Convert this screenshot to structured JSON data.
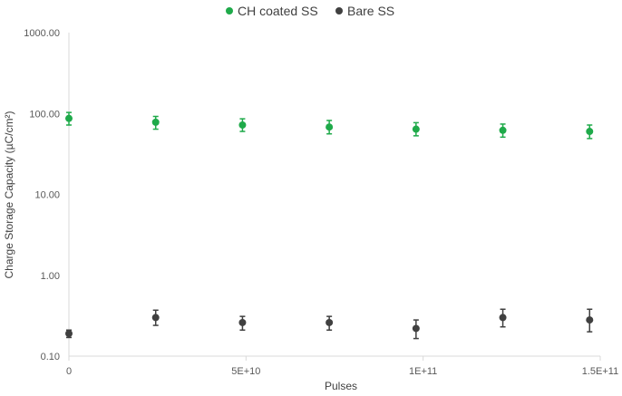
{
  "chart_data": {
    "type": "scatter",
    "xlabel": "Pulses",
    "ylabel": "Charge Storage Capacity (µC/cm²)",
    "xlim": [
      0,
      150000000000
    ],
    "ylim": [
      0.1,
      1000
    ],
    "yscale": "log",
    "grid": false,
    "legend_position": "top",
    "xticks": [
      {
        "value": 0,
        "label": "0"
      },
      {
        "value": 50000000000,
        "label": "5E+10"
      },
      {
        "value": 100000000000,
        "label": "1E+11"
      },
      {
        "value": 150000000000,
        "label": "1.5E+11"
      }
    ],
    "yticks": [
      {
        "value": 0.1,
        "label": "0.10"
      },
      {
        "value": 1,
        "label": "1.00"
      },
      {
        "value": 10,
        "label": "10.00"
      },
      {
        "value": 100,
        "label": "100.00"
      },
      {
        "value": 1000,
        "label": "1000.00"
      }
    ],
    "series": [
      {
        "name": "CH coated SS",
        "color": "#1faa4a",
        "x": [
          0,
          24500000000,
          49000000000,
          73500000000,
          98000000000,
          122500000000,
          147000000000
        ],
        "y": [
          87,
          78,
          72,
          68,
          64,
          62,
          60
        ],
        "err_low": [
          72,
          64,
          60,
          56,
          53,
          51,
          49
        ],
        "err_high": [
          103,
          92,
          86,
          82,
          77,
          74,
          72
        ]
      },
      {
        "name": "Bare SS",
        "color": "#404040",
        "x": [
          0,
          24500000000,
          49000000000,
          73500000000,
          98000000000,
          122500000000,
          147000000000
        ],
        "y": [
          0.19,
          0.3,
          0.26,
          0.26,
          0.22,
          0.3,
          0.28
        ],
        "err_low": [
          0.17,
          0.24,
          0.21,
          0.21,
          0.165,
          0.23,
          0.2
        ],
        "err_high": [
          0.21,
          0.37,
          0.31,
          0.31,
          0.28,
          0.38,
          0.38
        ]
      }
    ]
  }
}
